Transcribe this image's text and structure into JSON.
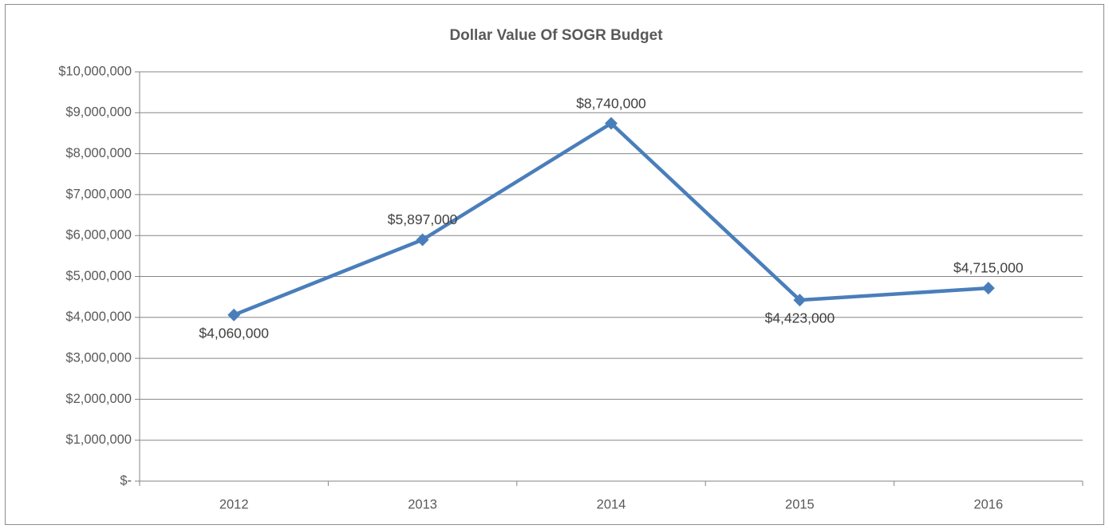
{
  "chart_data": {
    "type": "line",
    "title": "Dollar Value Of SOGR Budget",
    "categories": [
      "2012",
      "2013",
      "2014",
      "2015",
      "2016"
    ],
    "series": [
      {
        "color": "#4a7ebb",
        "values": [
          4060000,
          5897000,
          8740000,
          4423000,
          4715000
        ],
        "value_labels": [
          "$4,060,000",
          "$5,897,000",
          "$8,740,000",
          "$4,423,000",
          "$4,715,000"
        ]
      }
    ],
    "ylim": [
      0,
      10000000
    ],
    "yticks": [
      {
        "value": 0,
        "label": "$-"
      },
      {
        "value": 1000000,
        "label": "$1,000,000"
      },
      {
        "value": 2000000,
        "label": "$2,000,000"
      },
      {
        "value": 3000000,
        "label": "$3,000,000"
      },
      {
        "value": 4000000,
        "label": "$4,000,000"
      },
      {
        "value": 5000000,
        "label": "$5,000,000"
      },
      {
        "value": 6000000,
        "label": "$6,000,000"
      },
      {
        "value": 7000000,
        "label": "$7,000,000"
      },
      {
        "value": 8000000,
        "label": "$8,000,000"
      },
      {
        "value": 9000000,
        "label": "$9,000,000"
      },
      {
        "value": 10000000,
        "label": "$10,000,000"
      }
    ],
    "grid": true
  }
}
